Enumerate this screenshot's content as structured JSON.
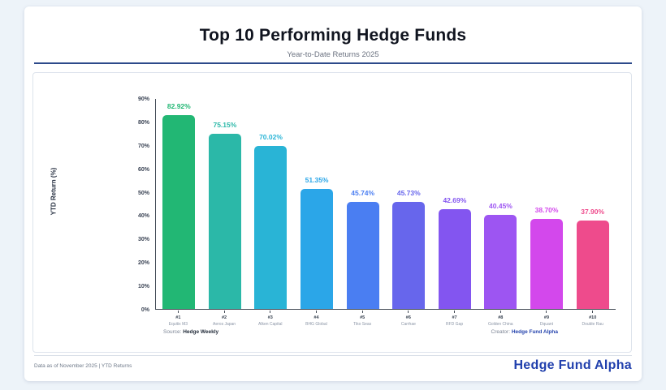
{
  "header": {
    "title": "Top 10 Performing Hedge Funds",
    "subtitle": "Year-to-Date Returns 2025"
  },
  "chart_data": {
    "type": "bar",
    "title": "Top 10 Performing Hedge Funds",
    "subtitle": "Year-to-Date Returns 2025",
    "ylabel": "YTD Return (%)",
    "xlabel": "",
    "ylim": [
      0,
      90
    ],
    "ytick_labels": [
      "0%",
      "10%",
      "20%",
      "30%",
      "40%",
      "50%",
      "60%",
      "70%",
      "80%",
      "90%"
    ],
    "grid": false,
    "legend": false,
    "ranks": [
      "#1",
      "#2",
      "#3",
      "#4",
      "#5",
      "#6",
      "#7",
      "#8",
      "#9",
      "#10"
    ],
    "names": [
      "Equitix M3",
      "Aeros Japan",
      "Alken Capital",
      "BHG Global",
      "Tiko Seas",
      "Carrhae",
      "RFD Gap",
      "Golden China",
      "Dquant",
      "Double Rau"
    ],
    "values": [
      82.92,
      75.15,
      70.02,
      51.35,
      45.74,
      45.73,
      42.69,
      40.45,
      38.7,
      37.9
    ],
    "value_labels": [
      "82.92%",
      "75.15%",
      "70.02%",
      "51.35%",
      "45.74%",
      "45.73%",
      "42.69%",
      "40.45%",
      "38.70%",
      "37.90%"
    ],
    "bar_colors": [
      "#22b774",
      "#2bb8a8",
      "#29b4d6",
      "#2ba6e8",
      "#4a7ef2",
      "#6766ec",
      "#8355f0",
      "#9d55f2",
      "#d348ec",
      "#ee4b8c"
    ]
  },
  "notes": {
    "source_label": "Source:",
    "source_value": "Hedge Weekly",
    "creator_label": "Creator:",
    "creator_value": "Hedge Fund Alpha"
  },
  "footer": {
    "left": "Data as of November 2025 | YTD Returns",
    "brand": "Hedge Fund Alpha"
  },
  "theme": {
    "page_bg": "#edf3f9",
    "divider_blue": "#2d4a8a",
    "brand_blue": "#2140ad",
    "axis_color": "#444c57"
  }
}
